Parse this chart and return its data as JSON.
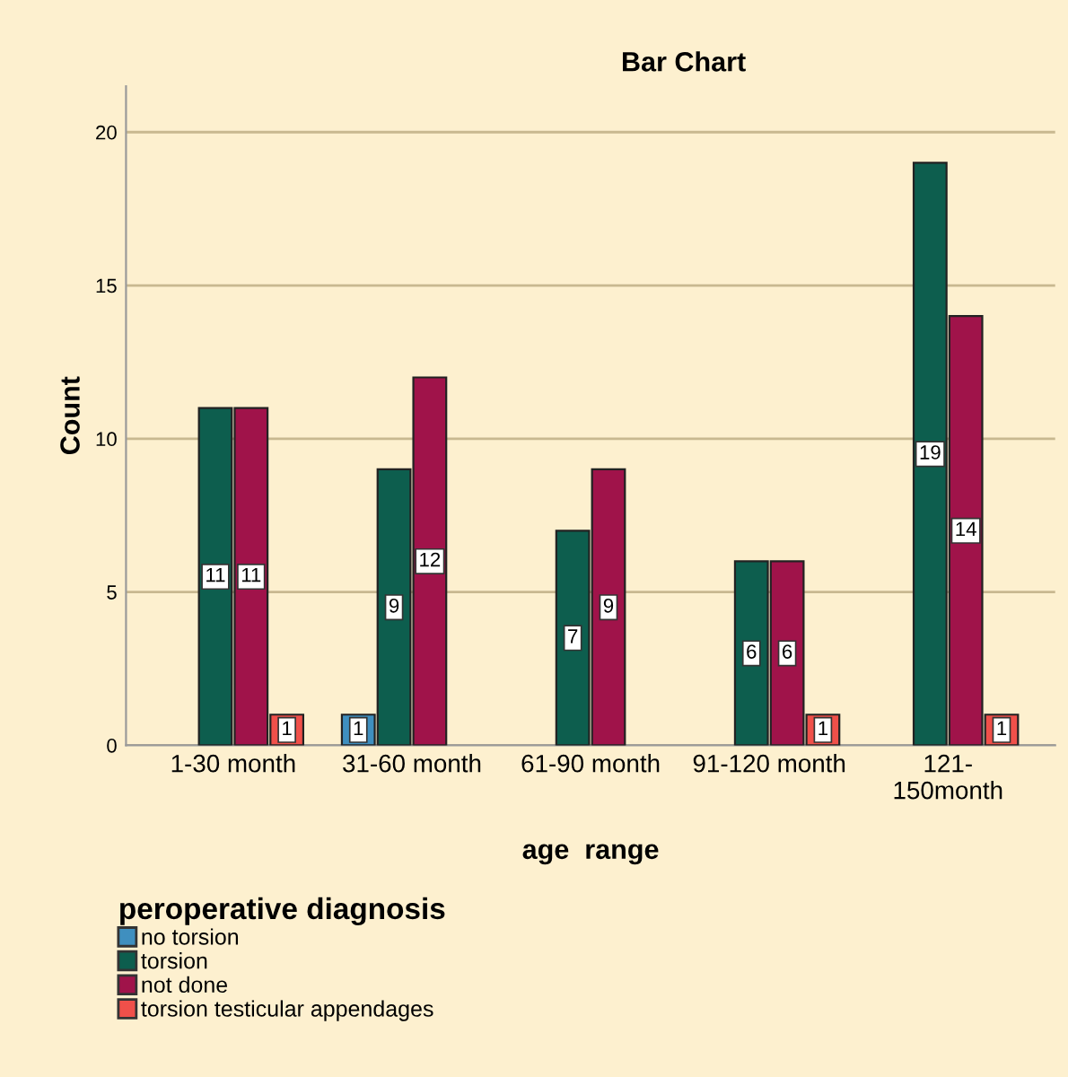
{
  "chart_data": {
    "type": "bar",
    "title": "Bar Chart",
    "xlabel": "age  range",
    "ylabel": "Count",
    "legend_title": "peroperative diagnosis",
    "categories": [
      "1-30 month",
      "31-60 month",
      "61-90 month",
      "91-120 month",
      "121-\n150month"
    ],
    "series": [
      {
        "name": "no torsion",
        "color": "#3f8fbf",
        "values": [
          null,
          1,
          null,
          null,
          null
        ]
      },
      {
        "name": "torsion",
        "color": "#0d5e4e",
        "values": [
          11,
          9,
          7,
          6,
          19
        ]
      },
      {
        "name": "not done",
        "color": "#a0134a",
        "values": [
          11,
          12,
          9,
          6,
          14
        ]
      },
      {
        "name": "torsion testicular appendages",
        "color": "#f0504a",
        "values": [
          1,
          null,
          null,
          1,
          1
        ]
      }
    ],
    "ylim": [
      0,
      21.5
    ],
    "yticks": [
      0,
      5,
      10,
      15,
      20
    ],
    "grid": "y",
    "legend": "bottom left",
    "data_labels": true
  }
}
